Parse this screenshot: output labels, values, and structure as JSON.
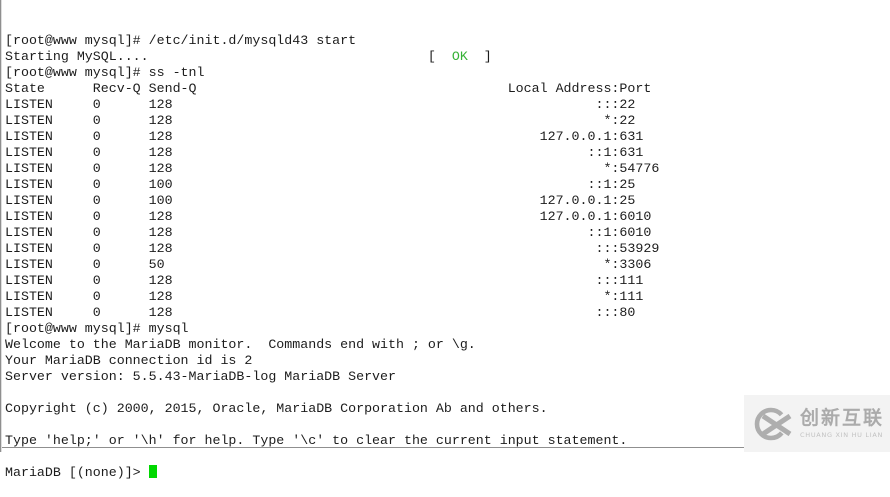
{
  "terminal": {
    "colors": {
      "text": "#1c1c1c",
      "ok_green": "#35b135",
      "cursor_green": "#00d800"
    },
    "entries": [
      {
        "type": "text",
        "text": "[root@www mysql]# /etc/init.d/mysqld43 start"
      },
      {
        "type": "status",
        "text": "Starting MySQL....",
        "open": "[  ",
        "label": "OK",
        "close": "  ]"
      },
      {
        "type": "text",
        "text": "[root@www mysql]# ss -tnl"
      },
      {
        "type": "table"
      },
      {
        "type": "text",
        "text": "[root@www mysql]# mysql"
      },
      {
        "type": "text",
        "text": "Welcome to the MariaDB monitor.  Commands end with ; or \\g."
      },
      {
        "type": "text",
        "text": "Your MariaDB connection id is 2"
      },
      {
        "type": "text",
        "text": "Server version: 5.5.43-MariaDB-log MariaDB Server"
      },
      {
        "type": "text",
        "text": ""
      },
      {
        "type": "text",
        "text": "Copyright (c) 2000, 2015, Oracle, MariaDB Corporation Ab and others."
      },
      {
        "type": "text",
        "text": ""
      },
      {
        "type": "text",
        "text": "Type 'help;' or '\\h' for help. Type '\\c' to clear the current input statement."
      },
      {
        "type": "text",
        "text": ""
      },
      {
        "type": "prompt",
        "text": "MariaDB [(none)]> ",
        "cursor": true
      }
    ]
  },
  "ss_table": {
    "columns": [
      "State",
      "Recv-Q",
      "Send-Q",
      "Local Address:Port"
    ],
    "rows": [
      [
        "LISTEN",
        "0",
        "128",
        ":::22"
      ],
      [
        "LISTEN",
        "0",
        "128",
        "*:22"
      ],
      [
        "LISTEN",
        "0",
        "128",
        "127.0.0.1:631"
      ],
      [
        "LISTEN",
        "0",
        "128",
        "::1:631"
      ],
      [
        "LISTEN",
        "0",
        "128",
        "*:54776"
      ],
      [
        "LISTEN",
        "0",
        "100",
        "::1:25"
      ],
      [
        "LISTEN",
        "0",
        "100",
        "127.0.0.1:25"
      ],
      [
        "LISTEN",
        "0",
        "128",
        "127.0.0.1:6010"
      ],
      [
        "LISTEN",
        "0",
        "128",
        "::1:6010"
      ],
      [
        "LISTEN",
        "0",
        "128",
        ":::53929"
      ],
      [
        "LISTEN",
        "0",
        "50",
        "*:3306"
      ],
      [
        "LISTEN",
        "0",
        "128",
        ":::111"
      ],
      [
        "LISTEN",
        "0",
        "128",
        "*:111"
      ],
      [
        "LISTEN",
        "0",
        "128",
        ":::80"
      ]
    ]
  },
  "watermark": {
    "brand_cn": "创新互联",
    "brand_en": "CHUANG XIN HU LIAN",
    "bg": "#f3f3f3",
    "logo_gray": "#aeaeae",
    "cn_gray": "#ababab",
    "en_gray": "#c2c2c2"
  }
}
